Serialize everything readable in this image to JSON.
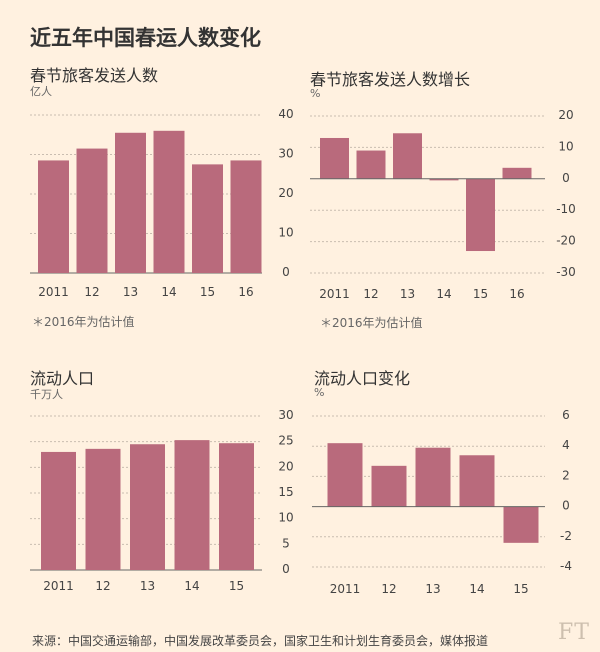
{
  "title": "近五年中国春运人数变化",
  "footer": "来源：中国交通运输部，中国发展改革委员会，国家卫生和计划生育委员会，媒体报道",
  "brand": "FT",
  "colors": {
    "bar": "#b96a7c",
    "background": "#fff1e0"
  },
  "chart_data": [
    {
      "type": "bar",
      "title": "春节旅客发送人数",
      "unit": "亿人",
      "note": "＊2016年为估计值",
      "categories": [
        "2011",
        "12",
        "13",
        "14",
        "15",
        "16"
      ],
      "values": [
        28.5,
        31.5,
        35.5,
        36,
        27.5,
        28.5
      ],
      "ylim": [
        0,
        40
      ],
      "yticks": [
        0,
        10,
        20,
        30,
        40
      ],
      "grid": true
    },
    {
      "type": "bar",
      "title": "春节旅客发送人数增长",
      "unit": "%",
      "note": "＊2016年为估计值",
      "categories": [
        "2011",
        "12",
        "13",
        "14",
        "15",
        "16"
      ],
      "values": [
        13,
        9,
        14.5,
        -0.5,
        -23,
        3.5
      ],
      "ylim": [
        -30,
        20
      ],
      "yticks": [
        20,
        10,
        0,
        -10,
        -20,
        -30
      ],
      "grid": true
    },
    {
      "type": "bar",
      "title": "流动人口",
      "unit": "千万人",
      "categories": [
        "2011",
        "12",
        "13",
        "14",
        "15"
      ],
      "values": [
        23,
        23.6,
        24.5,
        25.3,
        24.7
      ],
      "ylim": [
        0,
        30
      ],
      "yticks": [
        0,
        5,
        10,
        15,
        20,
        25,
        30
      ],
      "grid": true
    },
    {
      "type": "bar",
      "title": "流动人口变化",
      "unit": "%",
      "categories": [
        "2011",
        "12",
        "13",
        "14",
        "15"
      ],
      "values": [
        4.2,
        2.7,
        3.9,
        3.4,
        -2.4
      ],
      "ylim": [
        -4,
        6
      ],
      "yticks": [
        6,
        4,
        2,
        0,
        -2,
        -4
      ],
      "grid": true
    }
  ]
}
